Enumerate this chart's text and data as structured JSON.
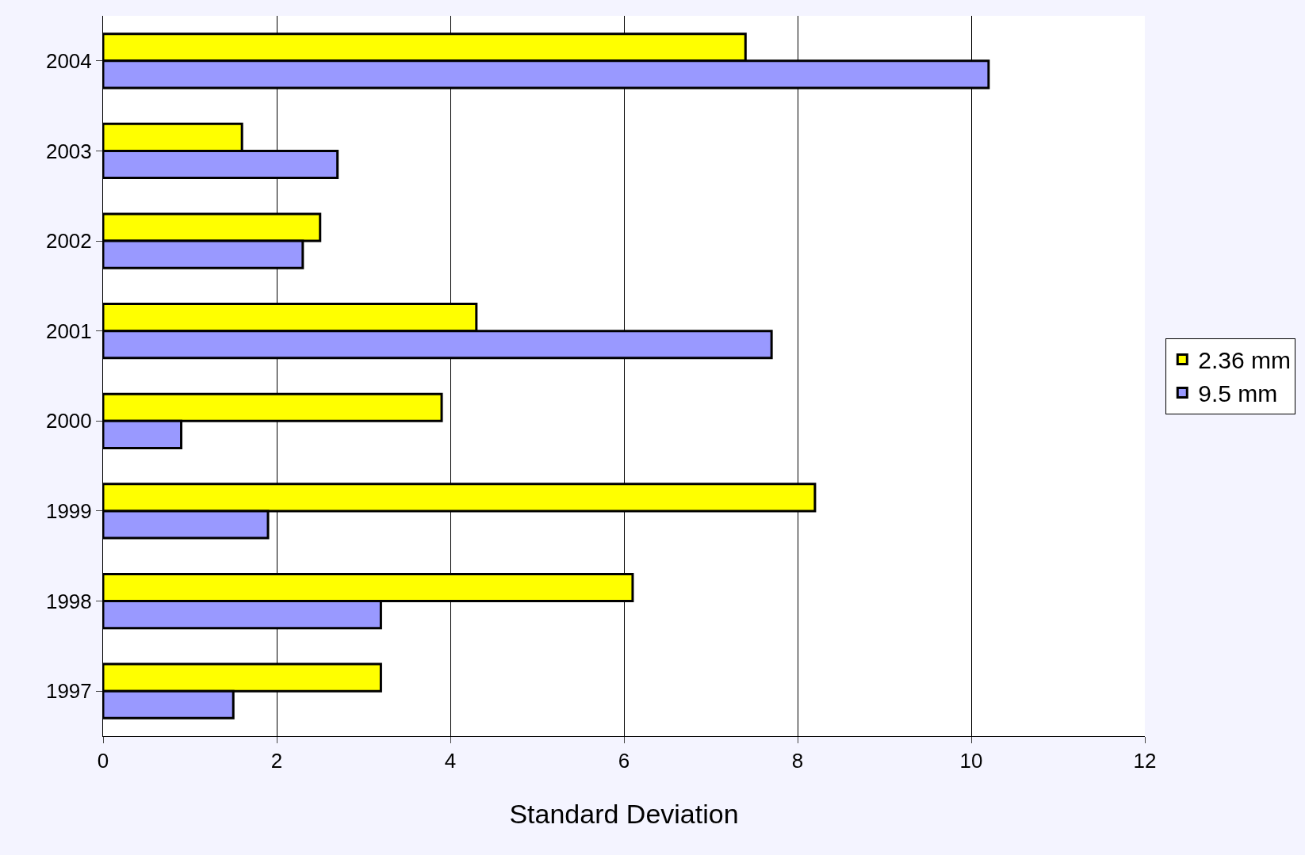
{
  "chart_data": {
    "type": "bar",
    "orientation": "horizontal",
    "xlabel": "Standard Deviation",
    "categories": [
      "2004",
      "2003",
      "2002",
      "2001",
      "2000",
      "1999",
      "1998",
      "1997"
    ],
    "series": [
      {
        "name": "2.36 mm",
        "color": "#ffff00",
        "values": [
          7.4,
          1.6,
          2.5,
          4.3,
          3.9,
          8.2,
          6.1,
          3.2
        ]
      },
      {
        "name": "9.5 mm",
        "color": "#9999ff",
        "values": [
          10.2,
          2.7,
          2.3,
          7.7,
          0.9,
          1.9,
          3.2,
          1.5
        ]
      }
    ],
    "xlim": [
      0,
      12
    ],
    "xticks": [
      0,
      2,
      4,
      6,
      8,
      10,
      12
    ],
    "grid": "x",
    "legend": "right"
  }
}
